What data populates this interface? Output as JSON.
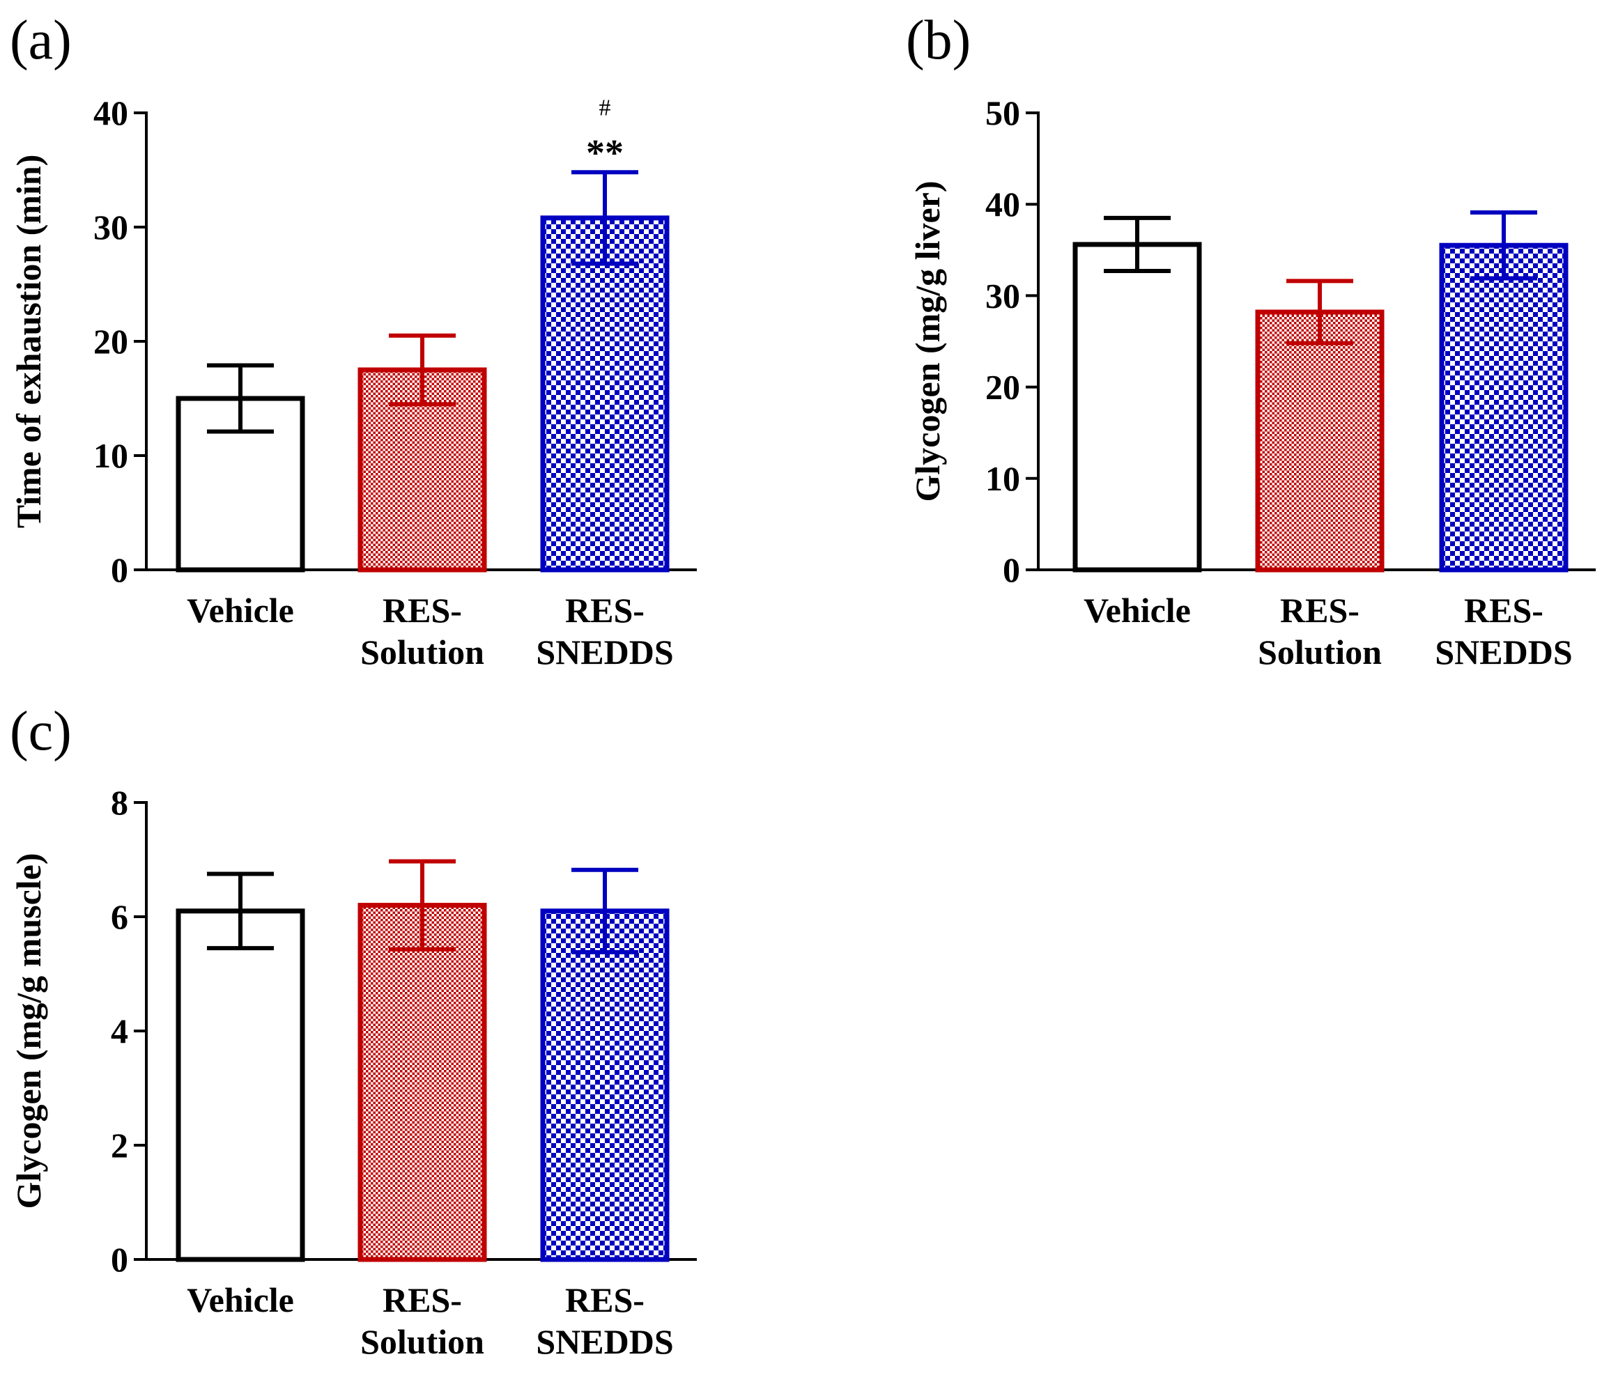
{
  "panels": [
    {
      "label": "(a)"
    },
    {
      "label": "(b)"
    },
    {
      "label": "(c)"
    }
  ],
  "colors": {
    "vehicle": "#000000",
    "res_solution": "#c00000",
    "res_snedds": "#0000c0"
  },
  "chart_data": [
    {
      "type": "bar",
      "panel": "(a)",
      "categories": [
        [
          "Vehicle"
        ],
        [
          "RES-",
          "Solution"
        ],
        [
          "RES-",
          "SNEDDS"
        ]
      ],
      "values": [
        15.0,
        17.5,
        30.8
      ],
      "errors": [
        2.9,
        3.0,
        4.0
      ],
      "ylabel": "Time of exhaustion (min)",
      "ylim": [
        0,
        40
      ],
      "yticks": [
        0,
        10,
        20,
        30,
        40
      ],
      "annotations": [
        {
          "category": 2,
          "lines": [
            "#",
            "**"
          ]
        }
      ]
    },
    {
      "type": "bar",
      "panel": "(b)",
      "categories": [
        [
          "Vehicle"
        ],
        [
          "RES-",
          "Solution"
        ],
        [
          "RES-",
          "SNEDDS"
        ]
      ],
      "values": [
        35.6,
        28.2,
        35.5
      ],
      "errors": [
        2.9,
        3.4,
        3.6
      ],
      "ylabel": "Glycogen (mg/g liver)",
      "ylim": [
        0,
        50
      ],
      "yticks": [
        0,
        10,
        20,
        30,
        40,
        50
      ],
      "annotations": []
    },
    {
      "type": "bar",
      "panel": "(c)",
      "categories": [
        [
          "Vehicle"
        ],
        [
          "RES-",
          "Solution"
        ],
        [
          "RES-",
          "SNEDDS"
        ]
      ],
      "values": [
        6.1,
        6.2,
        6.1
      ],
      "errors": [
        0.65,
        0.77,
        0.72
      ],
      "ylabel": "Glycogen (mg/g muscle)",
      "ylim": [
        0,
        8
      ],
      "yticks": [
        0,
        2,
        4,
        6,
        8
      ],
      "annotations": []
    }
  ]
}
